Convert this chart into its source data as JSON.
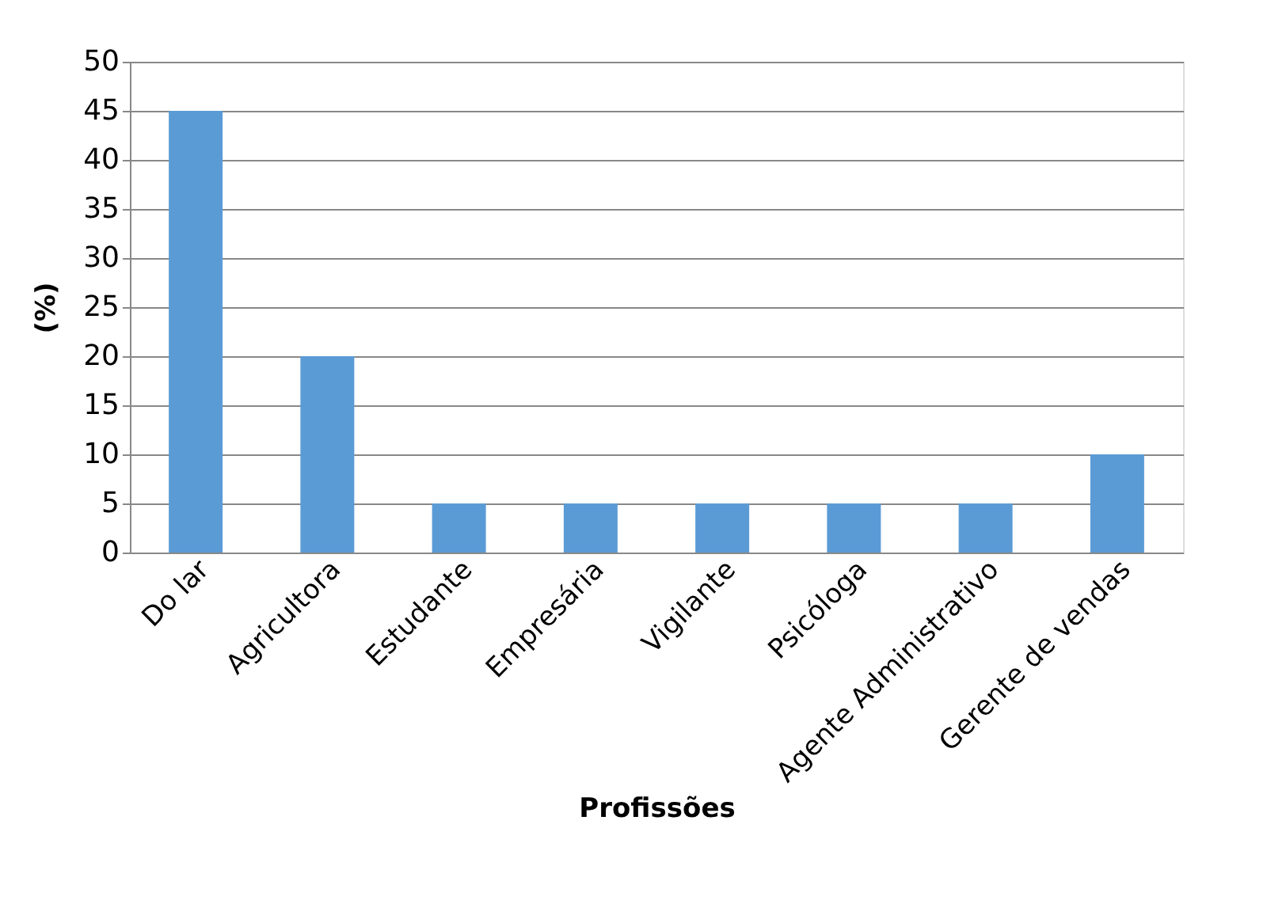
{
  "chart_data": {
    "type": "bar",
    "xlabel": "Profissões",
    "ylabel": "(%)",
    "categories": [
      "Do lar",
      "Agricultora",
      "Estudante",
      "Empresária",
      "Vigilante",
      "Psicóloga",
      "Agente Administrativo",
      "Gerente de vendas"
    ],
    "values": [
      45,
      20,
      5,
      5,
      5,
      5,
      5,
      10
    ],
    "color": "#5b9bd5",
    "ylim": [
      0,
      50
    ],
    "yticks": [
      0,
      5,
      10,
      15,
      20,
      25,
      30,
      35,
      40,
      45,
      50
    ],
    "grid": "y"
  }
}
